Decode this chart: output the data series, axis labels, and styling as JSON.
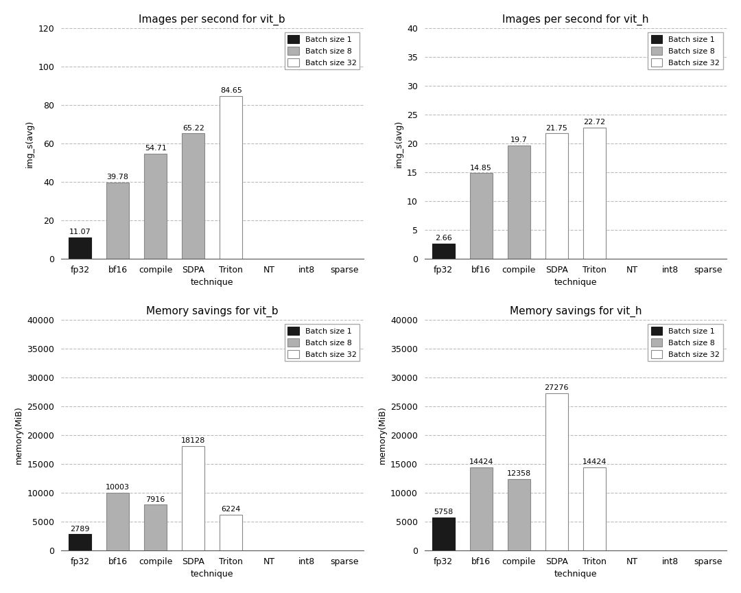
{
  "subplots": [
    {
      "title": "Images per second for vit_b",
      "ylabel": "img_s(avg)",
      "ylim": [
        0,
        120
      ],
      "yticks": [
        0,
        20,
        40,
        60,
        80,
        100,
        120
      ],
      "categories": [
        "fp32",
        "bf16",
        "compile",
        "SDPA",
        "Triton",
        "NT",
        "int8",
        "sparse"
      ],
      "bars": [
        {
          "x": 0,
          "value": 11.07,
          "batch": 1,
          "color": "#1a1a1a",
          "edgecolor": "#1a1a1a"
        },
        {
          "x": 1,
          "value": 39.78,
          "batch": 8,
          "color": "#b0b0b0",
          "edgecolor": "#888888"
        },
        {
          "x": 2,
          "value": 54.71,
          "batch": 8,
          "color": "#b0b0b0",
          "edgecolor": "#888888"
        },
        {
          "x": 3,
          "value": 65.22,
          "batch": 8,
          "color": "#b0b0b0",
          "edgecolor": "#888888"
        },
        {
          "x": 4,
          "value": 84.65,
          "batch": 32,
          "color": "#ffffff",
          "edgecolor": "#888888"
        }
      ]
    },
    {
      "title": "Images per second for vit_h",
      "ylabel": "img_s(avg)",
      "ylim": [
        0,
        40
      ],
      "yticks": [
        0,
        5,
        10,
        15,
        20,
        25,
        30,
        35,
        40
      ],
      "categories": [
        "fp32",
        "bf16",
        "compile",
        "SDPA",
        "Triton",
        "NT",
        "int8",
        "sparse"
      ],
      "bars": [
        {
          "x": 0,
          "value": 2.66,
          "batch": 1,
          "color": "#1a1a1a",
          "edgecolor": "#1a1a1a"
        },
        {
          "x": 1,
          "value": 14.85,
          "batch": 8,
          "color": "#b0b0b0",
          "edgecolor": "#888888"
        },
        {
          "x": 2,
          "value": 19.7,
          "batch": 8,
          "color": "#b0b0b0",
          "edgecolor": "#888888"
        },
        {
          "x": 3,
          "value": 21.75,
          "batch": 32,
          "color": "#ffffff",
          "edgecolor": "#888888"
        },
        {
          "x": 4,
          "value": 22.72,
          "batch": 32,
          "color": "#ffffff",
          "edgecolor": "#888888"
        }
      ]
    },
    {
      "title": "Memory savings for vit_b",
      "ylabel": "memory(MiB)",
      "ylim": [
        0,
        40000
      ],
      "yticks": [
        0,
        5000,
        10000,
        15000,
        20000,
        25000,
        30000,
        35000,
        40000
      ],
      "categories": [
        "fp32",
        "bf16",
        "compile",
        "SDPA",
        "Triton",
        "NT",
        "int8",
        "sparse"
      ],
      "bars": [
        {
          "x": 0,
          "value": 2789,
          "batch": 1,
          "color": "#1a1a1a",
          "edgecolor": "#1a1a1a"
        },
        {
          "x": 1,
          "value": 10003,
          "batch": 8,
          "color": "#b0b0b0",
          "edgecolor": "#888888"
        },
        {
          "x": 2,
          "value": 7916,
          "batch": 8,
          "color": "#b0b0b0",
          "edgecolor": "#888888"
        },
        {
          "x": 3,
          "value": 18128,
          "batch": 32,
          "color": "#ffffff",
          "edgecolor": "#888888"
        },
        {
          "x": 4,
          "value": 6224,
          "batch": 32,
          "color": "#ffffff",
          "edgecolor": "#888888"
        }
      ]
    },
    {
      "title": "Memory savings for vit_h",
      "ylabel": "memory(MiB)",
      "ylim": [
        0,
        40000
      ],
      "yticks": [
        0,
        5000,
        10000,
        15000,
        20000,
        25000,
        30000,
        35000,
        40000
      ],
      "categories": [
        "fp32",
        "bf16",
        "compile",
        "SDPA",
        "Triton",
        "NT",
        "int8",
        "sparse"
      ],
      "bars": [
        {
          "x": 0,
          "value": 5758,
          "batch": 1,
          "color": "#1a1a1a",
          "edgecolor": "#1a1a1a"
        },
        {
          "x": 1,
          "value": 14424,
          "batch": 8,
          "color": "#b0b0b0",
          "edgecolor": "#888888"
        },
        {
          "x": 2,
          "value": 12358,
          "batch": 8,
          "color": "#b0b0b0",
          "edgecolor": "#888888"
        },
        {
          "x": 3,
          "value": 27276,
          "batch": 32,
          "color": "#ffffff",
          "edgecolor": "#888888"
        },
        {
          "x": 4,
          "value": 14424,
          "batch": 32,
          "color": "#ffffff",
          "edgecolor": "#888888"
        }
      ]
    }
  ],
  "legend_labels": [
    "Batch size 1",
    "Batch size 8",
    "Batch size 32"
  ],
  "legend_colors": [
    "#1a1a1a",
    "#b0b0b0",
    "#ffffff"
  ],
  "legend_edgecolors": [
    "#1a1a1a",
    "#888888",
    "#888888"
  ],
  "xlabel": "technique",
  "bar_width": 0.6,
  "background_color": "#ffffff",
  "label_fontsize": 8,
  "tick_fontsize": 9,
  "title_fontsize": 11,
  "grid_color": "#aaaaaa",
  "grid_alpha": 0.8
}
